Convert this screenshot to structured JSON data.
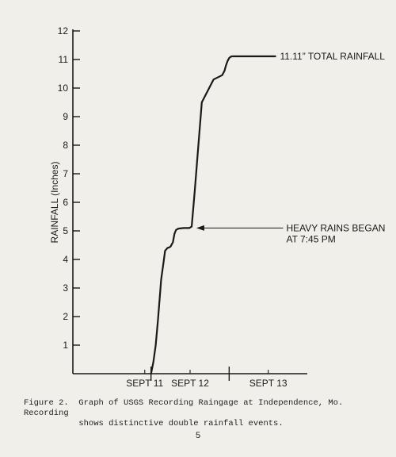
{
  "chart_data": {
    "type": "line",
    "ylabel": "RAINFALL (Inches)",
    "xlabel": "",
    "ylim": [
      0,
      12
    ],
    "yticks": [
      "1",
      "2",
      "3",
      "4",
      "5",
      "6",
      "7",
      "8",
      "9",
      "10",
      "11",
      "12"
    ],
    "xlim": [
      0,
      3
    ],
    "xticks": [
      {
        "label": "SEPT 11",
        "value": 0.92
      },
      {
        "label": "SEPT 12",
        "value": 1.5
      },
      {
        "label": "SEPT 13",
        "value": 2.5
      }
    ],
    "day_dividers": [
      1.0,
      2.0
    ],
    "grid": false,
    "series": [
      {
        "x": [
          1.0,
          1.03,
          1.06,
          1.09,
          1.11,
          1.13,
          1.16,
          1.18,
          1.21,
          1.23,
          1.25,
          1.28,
          1.3,
          1.32,
          1.35,
          1.42,
          1.49,
          1.52,
          1.54,
          1.56,
          1.58,
          1.65,
          1.8,
          1.91,
          1.94,
          1.96,
          1.98,
          2.0,
          2.02,
          2.04,
          2.06,
          2.07,
          2.08,
          2.12,
          2.15,
          2.2,
          2.22,
          2.26,
          2.32,
          2.45,
          2.6
        ],
        "y": [
          0.0,
          0.4,
          1.0,
          1.9,
          2.6,
          3.3,
          3.9,
          4.3,
          4.4,
          4.42,
          4.45,
          4.6,
          4.9,
          5.03,
          5.08,
          5.1,
          5.1,
          5.15,
          5.75,
          6.4,
          7.1,
          9.5,
          10.3,
          10.45,
          10.6,
          10.8,
          10.95,
          11.05,
          11.1,
          11.11,
          11.11,
          11.11,
          11.11,
          11.11,
          11.11,
          11.11,
          11.11,
          11.11,
          11.11,
          11.11,
          11.11
        ]
      }
    ],
    "annotations": [
      {
        "lines": [
          "11.11” TOTAL RAINFALL"
        ],
        "x": 2.65,
        "y": 11.11
      },
      {
        "lines": [
          "HEAVY RAINS BEGAN",
          "AT 7:45 PM"
        ],
        "x": 2.65,
        "y": 5.1,
        "arrow_to": {
          "x": 1.56,
          "y": 5.1
        }
      }
    ]
  },
  "caption": "Figure 2.  Graph of USGS Recording Raingage at Independence, Mo. Recording\n           shows distinctive double rainfall events.",
  "page_number": "5"
}
